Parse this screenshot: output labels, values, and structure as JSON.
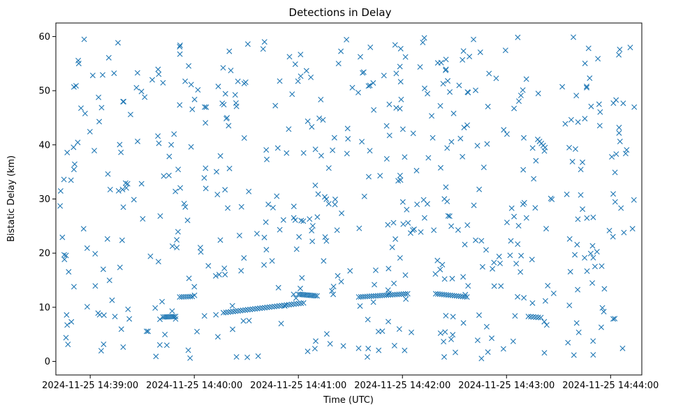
{
  "chart_data": {
    "type": "scatter",
    "title": "Detections in Delay",
    "xlabel": "Time (UTC)",
    "ylabel": "Bistatic Delay (km)",
    "marker": "x",
    "color": "#1f77b4",
    "xlim": [
      -0.33,
      5.3
    ],
    "ylim": [
      -2.5,
      62.5
    ],
    "xtick_values": [
      0,
      1,
      2,
      3,
      4,
      5
    ],
    "xtick_labels": [
      "2024-11-25 14:39:00",
      "2024-11-25 14:40:00",
      "2024-11-25 14:41:00",
      "2024-11-25 14:42:00",
      "2024-11-25 14:43:00",
      "2024-11-25 14:44:00"
    ],
    "xtick_unit": "minutes after 14:39:00",
    "ytick_values": [
      0,
      10,
      20,
      30,
      40,
      50,
      60
    ],
    "ytick_labels": [
      "0",
      "10",
      "20",
      "30",
      "40",
      "50",
      "60"
    ],
    "tracks": [
      {
        "x_start": 0.7,
        "x_end": 0.82,
        "y_start": 8.2,
        "y_end": 8.3,
        "count": 9
      },
      {
        "x_start": 0.86,
        "x_end": 0.98,
        "y_start": 11.9,
        "y_end": 12.0,
        "count": 7
      },
      {
        "x_start": 1.28,
        "x_end": 2.05,
        "y_start": 9.0,
        "y_end": 10.8,
        "count": 34
      },
      {
        "x_start": 2.0,
        "x_end": 2.18,
        "y_start": 12.4,
        "y_end": 12.1,
        "count": 12
      },
      {
        "x_start": 2.58,
        "x_end": 3.05,
        "y_start": 11.9,
        "y_end": 12.5,
        "count": 24
      },
      {
        "x_start": 3.32,
        "x_end": 3.62,
        "y_start": 12.5,
        "y_end": 11.9,
        "count": 16
      },
      {
        "x_start": 4.21,
        "x_end": 4.33,
        "y_start": 8.3,
        "y_end": 8.1,
        "count": 6
      },
      {
        "x_start": 4.3,
        "x_end": 4.37,
        "y_start": 41.0,
        "y_end": 39.5,
        "count": 5
      }
    ],
    "random_clutter": {
      "count": 560,
      "x_range": [
        -0.3,
        5.25
      ],
      "y_range": [
        0.5,
        60
      ]
    }
  }
}
